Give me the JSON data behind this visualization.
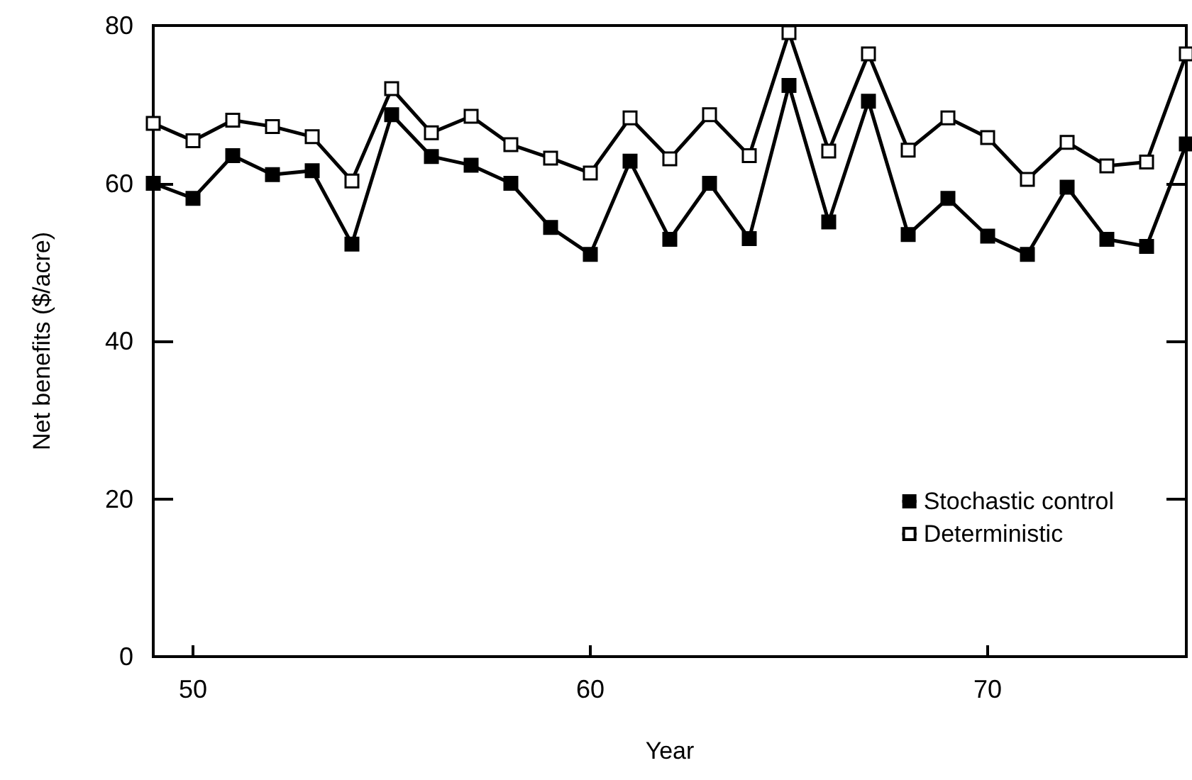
{
  "chart_data": {
    "type": "line",
    "xlabel": "Year",
    "ylabel": "Net benefits ($/acre)",
    "x": [
      49,
      50,
      51,
      52,
      53,
      54,
      55,
      56,
      57,
      58,
      59,
      60,
      61,
      62,
      63,
      64,
      65,
      66,
      67,
      68,
      69,
      70,
      71,
      72,
      73,
      74,
      75
    ],
    "series": [
      {
        "name": "Stochastic control",
        "color": "#000000",
        "values": [
          60.0,
          58.1,
          63.5,
          61.1,
          61.6,
          52.3,
          68.7,
          63.4,
          62.3,
          60.0,
          54.4,
          51.0,
          62.8,
          52.9,
          60.0,
          53.0,
          72.4,
          55.1,
          70.4,
          53.5,
          58.1,
          53.3,
          51.0,
          59.5,
          52.9,
          52.0,
          65.0
        ]
      },
      {
        "name": "Deterministic",
        "color": "#ffffff",
        "values": [
          67.6,
          65.4,
          68.0,
          67.2,
          65.9,
          60.3,
          72.0,
          66.4,
          68.5,
          64.9,
          63.2,
          61.3,
          68.3,
          63.1,
          68.7,
          63.5,
          79.1,
          64.1,
          76.4,
          64.2,
          68.3,
          65.8,
          60.5,
          65.2,
          62.2,
          62.7,
          76.4
        ]
      }
    ],
    "xlim": [
      49,
      75
    ],
    "xticks": [
      50,
      60,
      70
    ],
    "ylim": [
      0,
      80
    ],
    "yticks": [
      0,
      20,
      40,
      60,
      80
    ],
    "grid": false,
    "legend": "bottom right",
    "marker": "square",
    "line_style": "solid"
  }
}
